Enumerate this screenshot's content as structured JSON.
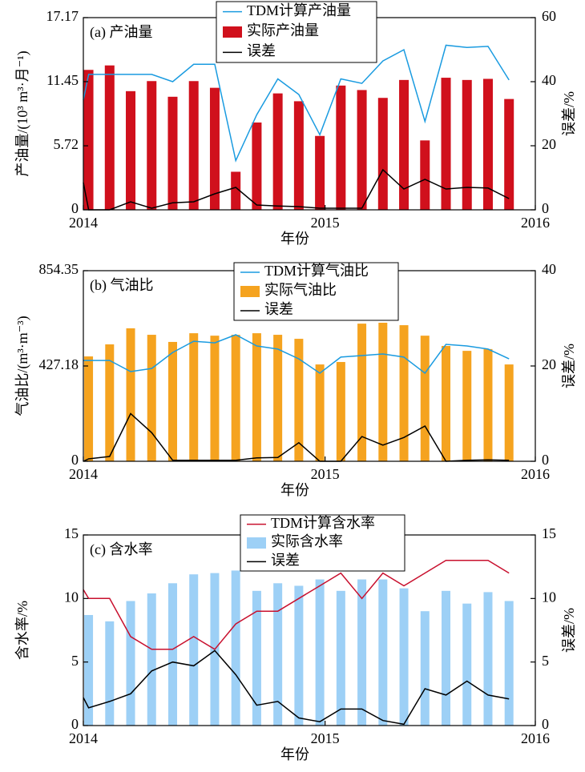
{
  "chart_data": [
    {
      "type": "bar",
      "panel_label": "(a) 产油量",
      "xlabel": "年份",
      "ylabel": "产油量/(10³ m³·月⁻¹)",
      "y2label": "误差/%",
      "xlim": [
        -0.25,
        21.25
      ],
      "xticks": [
        {
          "value": -0.25,
          "label": "2014"
        },
        {
          "value": 11.25,
          "label": "2015"
        },
        {
          "value": 21.25,
          "label": "2016"
        }
      ],
      "ylim": [
        0,
        17.17
      ],
      "yticks": [
        0,
        5.72,
        11.45,
        17.17
      ],
      "y2lim": [
        0,
        60
      ],
      "y2ticks": [
        0,
        20,
        40,
        60
      ],
      "x": [
        0,
        1,
        2,
        3,
        4,
        5,
        6,
        7,
        8,
        9,
        10,
        11,
        12,
        13,
        14,
        15,
        16,
        17,
        18,
        19,
        20
      ],
      "series": [
        {
          "name": "TDM计算产油量",
          "type": "line",
          "color": "#1a9be0",
          "x": [
            -0.25,
            0,
            1,
            2,
            3,
            4,
            5,
            6,
            7,
            8,
            9,
            10,
            11,
            12,
            13,
            14,
            15,
            16,
            17,
            18,
            19,
            20
          ],
          "values": [
            9.8,
            12.1,
            12.1,
            12.1,
            12.1,
            11.45,
            13.0,
            13.0,
            4.4,
            8.5,
            11.7,
            10.3,
            6.7,
            11.7,
            11.3,
            13.3,
            14.3,
            7.9,
            14.7,
            14.5,
            14.6,
            11.6
          ]
        },
        {
          "name": "实际产油量",
          "type": "bar",
          "color": "#d0101c",
          "values": [
            12.5,
            12.9,
            10.6,
            11.5,
            10.1,
            11.5,
            10.9,
            3.4,
            7.8,
            10.4,
            9.7,
            6.6,
            11.1,
            10.7,
            10.0,
            11.6,
            6.2,
            11.8,
            11.6,
            11.7,
            9.9
          ]
        },
        {
          "name": "误差",
          "type": "line",
          "color": "#000000",
          "axis": "y2",
          "x": [
            -0.25,
            0,
            1,
            2,
            3,
            4,
            5,
            6,
            7,
            8,
            9,
            10,
            11,
            12,
            13,
            14,
            15,
            16,
            17,
            18,
            19,
            20
          ],
          "values": [
            8.5,
            0,
            0,
            2.5,
            0.5,
            2.2,
            2.5,
            5,
            7,
            1.5,
            1.2,
            1,
            0.5,
            0.5,
            0.5,
            12.5,
            6.5,
            9.5,
            6.5,
            7,
            6.8,
            3.5
          ]
        }
      ]
    },
    {
      "type": "bar",
      "panel_label": "(b) 气油比",
      "xlabel": "年份",
      "ylabel": "气油比/(m³·m⁻³)",
      "y2label": "误差/%",
      "xlim": [
        -0.25,
        21.25
      ],
      "xticks": [
        {
          "value": -0.25,
          "label": "2014"
        },
        {
          "value": 11.25,
          "label": "2015"
        },
        {
          "value": 21.25,
          "label": "2016"
        }
      ],
      "ylim": [
        0,
        854.35
      ],
      "yticks": [
        0,
        427.18,
        854.35
      ],
      "y2lim": [
        0,
        40
      ],
      "y2ticks": [
        0,
        20,
        40
      ],
      "x": [
        0,
        1,
        2,
        3,
        4,
        5,
        6,
        7,
        8,
        9,
        10,
        11,
        12,
        13,
        14,
        15,
        16,
        17,
        18,
        19,
        20
      ],
      "series": [
        {
          "name": "TDM计算气油比",
          "type": "line",
          "color": "#1a9be0",
          "x": [
            -0.25,
            0,
            1,
            2,
            3,
            4,
            5,
            6,
            7,
            8,
            9,
            10,
            11,
            12,
            13,
            14,
            15,
            16,
            17,
            18,
            19,
            20
          ],
          "values": [
            452,
            452,
            452,
            402,
            416,
            488,
            538,
            531,
            567,
            517,
            503,
            459,
            395,
            467,
            474,
            481,
            467,
            395,
            524,
            517,
            503,
            459
          ]
        },
        {
          "name": "实际气油比",
          "type": "bar",
          "color": "#f5a31f",
          "values": [
            470,
            524,
            596,
            567,
            535,
            574,
            563,
            567,
            574,
            567,
            549,
            434,
            445,
            617,
            621,
            610,
            563,
            517,
            495,
            503,
            434
          ]
        },
        {
          "name": "误差",
          "type": "line",
          "color": "#000000",
          "axis": "y2",
          "x": [
            -0.25,
            0,
            1,
            2,
            3,
            4,
            5,
            6,
            7,
            8,
            9,
            10,
            11,
            12,
            13,
            14,
            15,
            16,
            17,
            18,
            19,
            20
          ],
          "values": [
            0,
            0.5,
            1,
            10,
            6,
            0.2,
            0.2,
            0.2,
            0.2,
            0.7,
            0.8,
            3.9,
            0,
            0,
            5.2,
            3.4,
            5,
            7.4,
            0,
            0.2,
            0.3,
            0.2
          ]
        }
      ]
    },
    {
      "type": "bar",
      "panel_label": "(c) 含水率",
      "xlabel": "年份",
      "ylabel": "含水率/%",
      "y2label": "误差/%",
      "xlim": [
        -0.25,
        21.25
      ],
      "xticks": [
        {
          "value": -0.25,
          "label": "2014"
        },
        {
          "value": 11.25,
          "label": "2015"
        },
        {
          "value": 21.25,
          "label": "2016"
        }
      ],
      "ylim": [
        0,
        15
      ],
      "yticks": [
        0,
        5,
        10,
        15
      ],
      "y2lim": [
        0,
        15
      ],
      "y2ticks": [
        0,
        5,
        10,
        15
      ],
      "x": [
        0,
        1,
        2,
        3,
        4,
        5,
        6,
        7,
        8,
        9,
        10,
        11,
        12,
        13,
        14,
        15,
        16,
        17,
        18,
        19,
        20
      ],
      "series": [
        {
          "name": "TDM计算含水率",
          "type": "line",
          "color": "#c8102e",
          "x": [
            -0.25,
            0,
            1,
            2,
            3,
            4,
            5,
            6,
            7,
            8,
            9,
            10,
            11,
            12,
            13,
            14,
            15,
            16,
            17,
            18,
            19,
            20
          ],
          "values": [
            10.7,
            10,
            10,
            7,
            6,
            6,
            7,
            6,
            8,
            9,
            9,
            10,
            11,
            12,
            10,
            12,
            11,
            12,
            13,
            13,
            13,
            12
          ]
        },
        {
          "name": "实际含水率",
          "type": "bar",
          "color": "#9dd0f6",
          "values": [
            8.7,
            8.2,
            9.8,
            10.4,
            11.2,
            11.9,
            12.0,
            12.2,
            10.6,
            11.2,
            11.0,
            11.5,
            10.6,
            11.5,
            11.5,
            10.8,
            9.0,
            10.6,
            9.6,
            10.5,
            9.8
          ]
        },
        {
          "name": "误差",
          "type": "line",
          "color": "#000000",
          "axis": "y2",
          "x": [
            -0.25,
            0,
            1,
            2,
            3,
            4,
            5,
            6,
            7,
            8,
            9,
            10,
            11,
            12,
            13,
            14,
            15,
            16,
            17,
            18,
            19,
            20
          ],
          "values": [
            2.2,
            1.4,
            1.9,
            2.5,
            4.3,
            5,
            4.7,
            5.9,
            4,
            1.6,
            1.9,
            0.6,
            0.3,
            1.3,
            1.3,
            0.4,
            0.1,
            2.9,
            2.4,
            3.5,
            2.4,
            2.1
          ]
        }
      ]
    }
  ]
}
